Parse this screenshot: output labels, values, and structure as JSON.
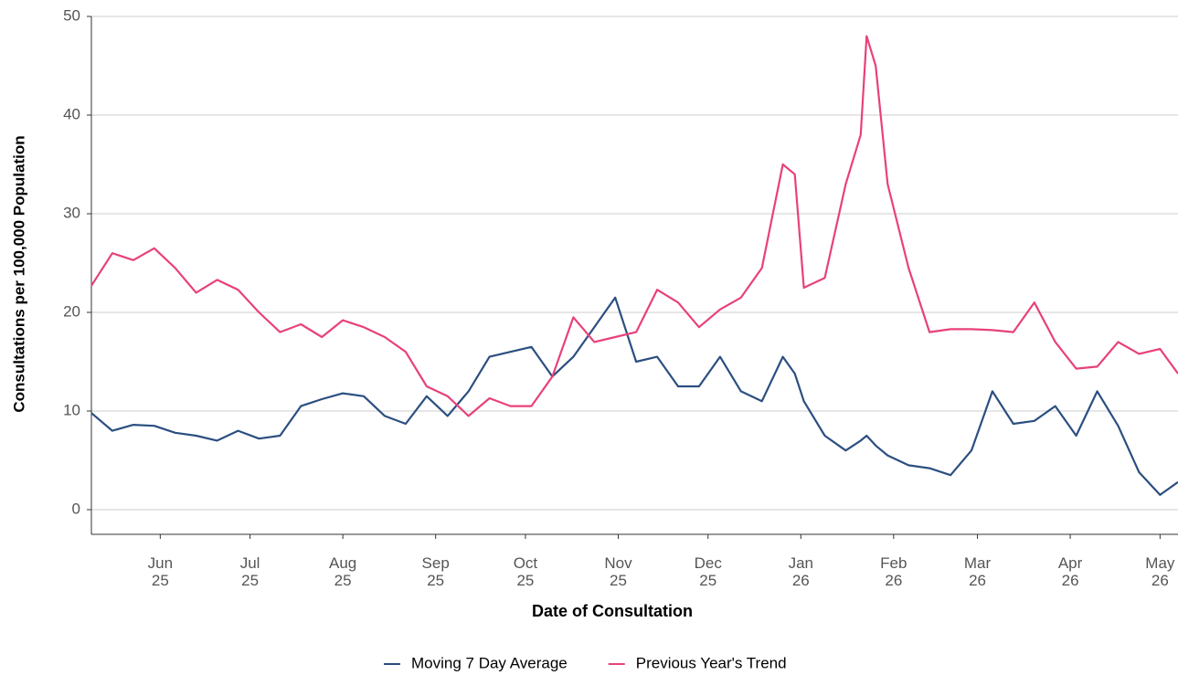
{
  "chart_data": {
    "type": "line",
    "y_label": "Consultations per 100,000 Population",
    "x_label": "Date of Consultation",
    "x": [
      "2025-05-09",
      "2025-05-16",
      "2025-05-23",
      "2025-05-30",
      "2025-06-06",
      "2025-06-13",
      "2025-06-20",
      "2025-06-27",
      "2025-07-04",
      "2025-07-11",
      "2025-07-18",
      "2025-07-25",
      "2025-08-01",
      "2025-08-08",
      "2025-08-15",
      "2025-08-22",
      "2025-08-29",
      "2025-09-05",
      "2025-09-12",
      "2025-09-19",
      "2025-09-26",
      "2025-10-03",
      "2025-10-10",
      "2025-10-17",
      "2025-10-24",
      "2025-10-31",
      "2025-11-07",
      "2025-11-14",
      "2025-11-21",
      "2025-11-28",
      "2025-12-05",
      "2025-12-12",
      "2025-12-19",
      "2025-12-26",
      "2025-12-30",
      "2026-01-02",
      "2026-01-09",
      "2026-01-16",
      "2026-01-21",
      "2026-01-23",
      "2026-01-26",
      "2026-01-30",
      "2026-02-06",
      "2026-02-13",
      "2026-02-20",
      "2026-02-27",
      "2026-03-06",
      "2026-03-13",
      "2026-03-20",
      "2026-03-27",
      "2026-04-03",
      "2026-04-10",
      "2026-04-17",
      "2026-04-24",
      "2026-05-01",
      "2026-05-07"
    ],
    "series": [
      {
        "name": "Moving 7 Day Average",
        "color": "#2b4f80",
        "values": [
          9.8,
          8,
          8.6,
          8.5,
          7.8,
          7.5,
          7,
          8,
          7.2,
          7.5,
          10.5,
          11.2,
          11.8,
          11.5,
          9.5,
          8.7,
          11.5,
          9.5,
          12,
          15.5,
          16,
          16.5,
          13.5,
          15.5,
          18.5,
          21.5,
          15,
          15.5,
          12.5,
          12.5,
          15.5,
          12,
          11,
          15.5,
          13.8,
          11,
          7.5,
          6,
          7,
          7.5,
          6.5,
          5.5,
          4.5,
          4.2,
          3.5,
          6,
          12,
          8.7,
          9,
          10.5,
          7.5,
          12,
          8.5,
          3.8,
          1.5,
          2.8
        ]
      },
      {
        "name": "Previous Year's Trend",
        "color": "#e8417a",
        "values": [
          22.7,
          26,
          25.3,
          26.5,
          24.5,
          22,
          23.3,
          22.3,
          20,
          18,
          18.8,
          17.5,
          19.2,
          18.5,
          17.5,
          16,
          12.5,
          11.5,
          9.5,
          11.3,
          10.5,
          10.5,
          13.5,
          19.5,
          17,
          17.5,
          18,
          22.3,
          21,
          18.5,
          20.3,
          21.5,
          24.5,
          35,
          34,
          22.5,
          23.5,
          33,
          38,
          48,
          45,
          33,
          24.5,
          18,
          18.3,
          18.3,
          18.2,
          18,
          21,
          17,
          14.3,
          14.5,
          17,
          15.8,
          16.3,
          13.8
        ]
      }
    ],
    "xlim": [
      "2025-05-09",
      "2026-05-07"
    ],
    "xticks": [
      {
        "value": "2025-06-01",
        "label": "Jun\n25"
      },
      {
        "value": "2025-07-01",
        "label": "Jul\n25"
      },
      {
        "value": "2025-08-01",
        "label": "Aug\n25"
      },
      {
        "value": "2025-09-01",
        "label": "Sep\n25"
      },
      {
        "value": "2025-10-01",
        "label": "Oct\n25"
      },
      {
        "value": "2025-11-01",
        "label": "Nov\n25"
      },
      {
        "value": "2025-12-01",
        "label": "Dec\n25"
      },
      {
        "value": "2026-01-01",
        "label": "Jan\n26"
      },
      {
        "value": "2026-02-01",
        "label": "Feb\n26"
      },
      {
        "value": "2026-03-01",
        "label": "Mar\n26"
      },
      {
        "value": "2026-04-01",
        "label": "Apr\n26"
      },
      {
        "value": "2026-05-01",
        "label": "May\n26"
      }
    ],
    "ylim": [
      -2.5,
      50
    ],
    "yticks": [
      0,
      10,
      20,
      30,
      40,
      50
    ],
    "grid": true,
    "legend": "bottom"
  }
}
